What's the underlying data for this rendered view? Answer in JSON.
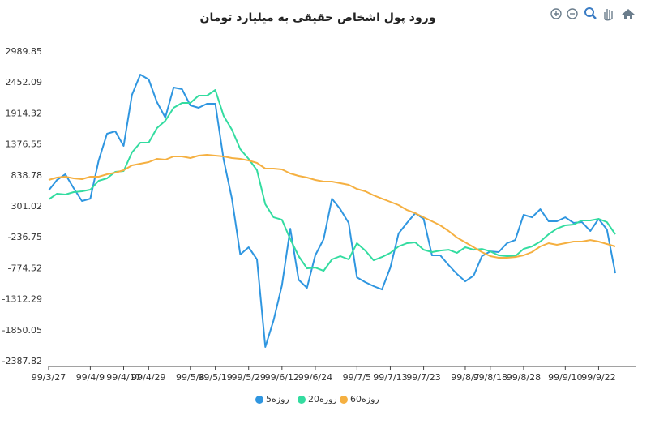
{
  "chart_data": {
    "type": "line",
    "title": "ورود پول اشخاص حقیقی به میلیارد تومان",
    "categories": [
      "99/3/27",
      null,
      null,
      null,
      null,
      "99/4/9",
      null,
      null,
      null,
      "99/4/17",
      null,
      null,
      "99/4/29",
      null,
      null,
      null,
      null,
      "99/5/8",
      null,
      null,
      "99/5/19",
      null,
      null,
      null,
      "99/5/29",
      null,
      null,
      null,
      "99/6/12",
      null,
      null,
      null,
      "99/6/24",
      null,
      null,
      null,
      null,
      "99/7/5",
      null,
      null,
      null,
      "99/7/13",
      null,
      null,
      null,
      "99/7/23",
      null,
      null,
      null,
      null,
      "99/8/7",
      null,
      null,
      "99/8/18",
      null,
      null,
      null,
      "99/8/28",
      null,
      null,
      null,
      null,
      "99/9/10",
      null,
      null,
      null,
      "99/9/22",
      null,
      null
    ],
    "series": [
      {
        "name": "روزه5",
        "color": "#2f96e0",
        "values": [
          582,
          765,
          864,
          625,
          399,
          441,
          1103,
          1568,
          1610,
          1357,
          2244,
          2596,
          2511,
          2117,
          1849,
          2370,
          2342,
          2061,
          2018,
          2089,
          2089,
          1117,
          441,
          -530,
          -403,
          -614,
          -2135,
          -1671,
          -1065,
          -80,
          -967,
          -1108,
          -544,
          -263,
          441,
          258,
          19,
          -925,
          -1009,
          -1079,
          -1136,
          -756,
          -164,
          19,
          188,
          89,
          -544,
          -544,
          -713,
          -868,
          -995,
          -896,
          -558,
          -474,
          -488,
          -333,
          -277,
          160,
          117,
          258,
          47,
          47,
          117,
          19,
          33,
          -122,
          89,
          -94,
          -854
        ]
      },
      {
        "name": "روزه20",
        "color": "#33dca0",
        "values": [
          427,
          526,
          512,
          554,
          568,
          596,
          751,
          794,
          906,
          920,
          1244,
          1413,
          1413,
          1666,
          1793,
          2018,
          2103,
          2103,
          2230,
          2230,
          2328,
          1878,
          1638,
          1300,
          1131,
          934,
          343,
          117,
          75,
          -263,
          -558,
          -770,
          -756,
          -812,
          -614,
          -558,
          -614,
          -333,
          -460,
          -629,
          -573,
          -502,
          -389,
          -333,
          -319,
          -446,
          -488,
          -460,
          -446,
          -502,
          -403,
          -446,
          -432,
          -474,
          -544,
          -558,
          -558,
          -432,
          -389,
          -305,
          -178,
          -80,
          -23,
          -9,
          61,
          61,
          89,
          33,
          -178
        ]
      },
      {
        "name": "روزه60",
        "color": "#f5b041",
        "values": [
          765,
          808,
          822,
          794,
          779,
          822,
          822,
          864,
          892,
          934,
          1019,
          1047,
          1075,
          1131,
          1117,
          1174,
          1174,
          1146,
          1188,
          1202,
          1188,
          1174,
          1146,
          1131,
          1103,
          1061,
          962,
          962,
          948,
          878,
          836,
          808,
          765,
          737,
          737,
          709,
          681,
          610,
          568,
          498,
          441,
          385,
          329,
          244,
          188,
          117,
          47,
          -23,
          -122,
          -234,
          -319,
          -403,
          -488,
          -558,
          -586,
          -586,
          -573,
          -544,
          -488,
          -389,
          -333,
          -361,
          -333,
          -305,
          -305,
          -277,
          -305,
          -347,
          -389
        ]
      }
    ],
    "ylim": [
      -2387.82,
      2989.85
    ],
    "yticks": [
      2989.85,
      2452.09,
      1914.32,
      1376.55,
      838.78,
      301.02,
      -236.75,
      -774.52,
      -1312.29,
      -1850.05,
      -2387.82
    ],
    "grid": false
  }
}
